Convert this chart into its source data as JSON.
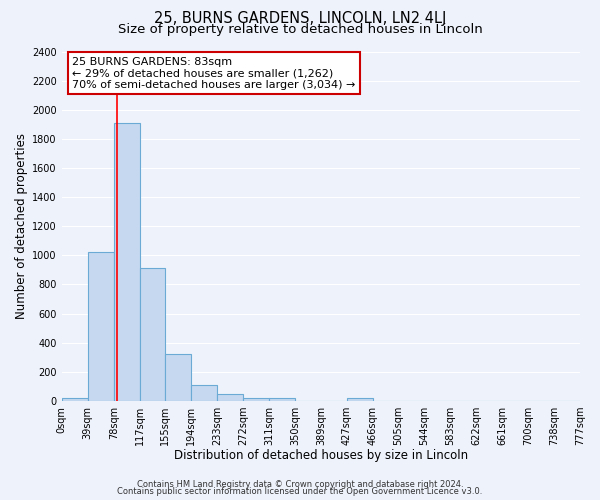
{
  "title": "25, BURNS GARDENS, LINCOLN, LN2 4LJ",
  "subtitle": "Size of property relative to detached houses in Lincoln",
  "xlabel": "Distribution of detached houses by size in Lincoln",
  "ylabel": "Number of detached properties",
  "footer_line1": "Contains HM Land Registry data © Crown copyright and database right 2024.",
  "footer_line2": "Contains public sector information licensed under the Open Government Licence v3.0.",
  "bar_edges": [
    0,
    39,
    78,
    117,
    155,
    194,
    233,
    272,
    311,
    350,
    389,
    427,
    466,
    505,
    544,
    583,
    622,
    661,
    700,
    738,
    777
  ],
  "bar_heights": [
    20,
    1020,
    1910,
    910,
    320,
    110,
    50,
    20,
    20,
    0,
    0,
    20,
    0,
    0,
    0,
    0,
    0,
    0,
    0,
    0
  ],
  "bar_color": "#c5d8f0",
  "bar_edge_color": "#6aaad4",
  "bar_edge_width": 0.8,
  "red_line_x": 83,
  "ylim": [
    0,
    2400
  ],
  "yticks": [
    0,
    200,
    400,
    600,
    800,
    1000,
    1200,
    1400,
    1600,
    1800,
    2000,
    2200,
    2400
  ],
  "xtick_labels": [
    "0sqm",
    "39sqm",
    "78sqm",
    "117sqm",
    "155sqm",
    "194sqm",
    "233sqm",
    "272sqm",
    "311sqm",
    "350sqm",
    "389sqm",
    "427sqm",
    "466sqm",
    "505sqm",
    "544sqm",
    "583sqm",
    "622sqm",
    "661sqm",
    "700sqm",
    "738sqm",
    "777sqm"
  ],
  "annotation_line1": "25 BURNS GARDENS: 83sqm",
  "annotation_line2": "← 29% of detached houses are smaller (1,262)",
  "annotation_line3": "70% of semi-detached houses are larger (3,034) →",
  "annotation_box_color": "#ffffff",
  "annotation_box_edge": "#cc0000",
  "bg_color": "#eef2fb",
  "grid_color": "#ffffff",
  "title_fontsize": 10.5,
  "subtitle_fontsize": 9.5,
  "axis_label_fontsize": 8.5,
  "tick_fontsize": 7,
  "annotation_fontsize": 8,
  "footer_fontsize": 6
}
